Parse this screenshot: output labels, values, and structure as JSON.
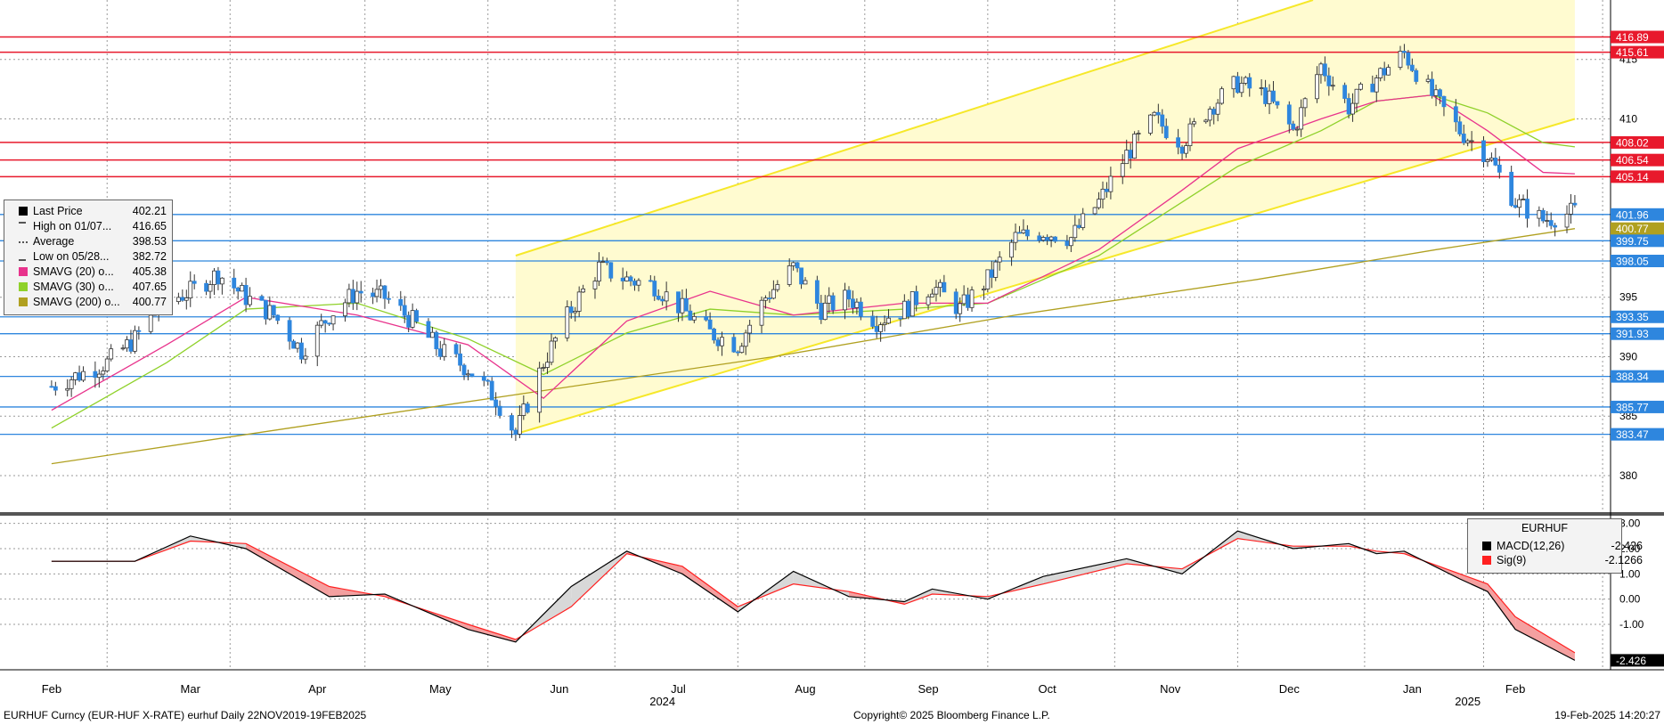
{
  "footer": {
    "left": "EURHUF Curncy (EUR-HUF X-RATE) eurhuf  Daily 22NOV2019-19FEB2025",
    "center": "Copyright© 2025 Bloomberg Finance L.P.",
    "right": "19-Feb-2025 14:20:27"
  },
  "legend": [
    {
      "name": "Last Price",
      "value": "402.21",
      "color": "#000000",
      "marker": "square"
    },
    {
      "name": "High on 01/07...",
      "value": "416.65",
      "color": "#555555",
      "marker": "T"
    },
    {
      "name": "Average",
      "value": "398.53",
      "color": "#555555",
      "marker": "dash"
    },
    {
      "name": "Low on 05/28...",
      "value": "382.72",
      "color": "#555555",
      "marker": "inv-T"
    },
    {
      "name": "SMAVG (20)  o...",
      "value": "405.38",
      "color": "#e8338c",
      "marker": "square"
    },
    {
      "name": "SMAVG (30)  o...",
      "value": "407.65",
      "color": "#8fd12a",
      "marker": "square"
    },
    {
      "name": "SMAVG (200)  o...",
      "value": "400.77",
      "color": "#b0a020",
      "marker": "square"
    }
  ],
  "macd_legend": {
    "title": "EURHUF",
    "rows": [
      {
        "name": "MACD(12,26)",
        "value": "-2.426",
        "color": "#000000"
      },
      {
        "name": "Sig(9)",
        "value": "-2.1266",
        "color": "#ff2020"
      }
    ]
  },
  "chart_data": [
    {
      "type": "candlestick",
      "ylim": [
        377,
        420
      ],
      "y_ticks": [
        "380",
        "385",
        "390",
        "395",
        "410",
        "415"
      ],
      "x_ticks": [
        "Feb",
        "Mar",
        "Apr",
        "May",
        "Jun",
        "Jul",
        "Aug",
        "Sep",
        "Oct",
        "Nov",
        "Dec",
        "Jan",
        "Feb"
      ],
      "x_years": [
        "2024",
        "2025"
      ],
      "price_points": [
        [
          "2024-02-01",
          387.5
        ],
        [
          "2024-02-08",
          388.5
        ],
        [
          "2024-02-15",
          389.5
        ],
        [
          "2024-02-22",
          391.5
        ],
        [
          "2024-02-29",
          394.5
        ],
        [
          "2024-03-07",
          395.5
        ],
        [
          "2024-03-14",
          397
        ],
        [
          "2024-03-21",
          395
        ],
        [
          "2024-03-28",
          393.5
        ],
        [
          "2024-04-04",
          390.5
        ],
        [
          "2024-04-11",
          393.5
        ],
        [
          "2024-04-18",
          395.5
        ],
        [
          "2024-04-25",
          395
        ],
        [
          "2024-05-02",
          393
        ],
        [
          "2024-05-09",
          390.5
        ],
        [
          "2024-05-16",
          389
        ],
        [
          "2024-05-23",
          386.5
        ],
        [
          "2024-05-28",
          383.5
        ],
        [
          "2024-06-04",
          389.5
        ],
        [
          "2024-06-11",
          394
        ],
        [
          "2024-06-18",
          397.5
        ],
        [
          "2024-06-25",
          396.5
        ],
        [
          "2024-07-02",
          396
        ],
        [
          "2024-07-09",
          394
        ],
        [
          "2024-07-16",
          392
        ],
        [
          "2024-07-23",
          391
        ],
        [
          "2024-07-30",
          395
        ],
        [
          "2024-08-06",
          397.5
        ],
        [
          "2024-08-13",
          394
        ],
        [
          "2024-08-20",
          395
        ],
        [
          "2024-08-27",
          393
        ],
        [
          "2024-09-03",
          394
        ],
        [
          "2024-09-10",
          396
        ],
        [
          "2024-09-17",
          394
        ],
        [
          "2024-09-24",
          396.5
        ],
        [
          "2024-10-01",
          400
        ],
        [
          "2024-10-08",
          400.5
        ],
        [
          "2024-10-15",
          400
        ],
        [
          "2024-10-22",
          403
        ],
        [
          "2024-10-29",
          407
        ],
        [
          "2024-11-05",
          410
        ],
        [
          "2024-11-12",
          408
        ],
        [
          "2024-11-19",
          411
        ],
        [
          "2024-11-26",
          413
        ],
        [
          "2024-12-03",
          412
        ],
        [
          "2024-12-10",
          409
        ],
        [
          "2024-12-17",
          414.5
        ],
        [
          "2024-12-24",
          411
        ],
        [
          "2024-12-31",
          413.5
        ],
        [
          "2025-01-07",
          415.5
        ],
        [
          "2025-01-14",
          412
        ],
        [
          "2025-01-21",
          409
        ],
        [
          "2025-01-28",
          407
        ],
        [
          "2025-02-04",
          403
        ],
        [
          "2025-02-11",
          401.5
        ],
        [
          "2025-02-19",
          402.21
        ]
      ],
      "sma20": [
        [
          "2024-02-01",
          385.5
        ],
        [
          "2024-03-01",
          391
        ],
        [
          "2024-03-21",
          395
        ],
        [
          "2024-04-18",
          393.5
        ],
        [
          "2024-05-16",
          391
        ],
        [
          "2024-06-04",
          386.5
        ],
        [
          "2024-06-25",
          393
        ],
        [
          "2024-07-16",
          395.5
        ],
        [
          "2024-08-06",
          393.5
        ],
        [
          "2024-09-03",
          394.5
        ],
        [
          "2024-09-24",
          394.5
        ],
        [
          "2024-10-22",
          399
        ],
        [
          "2024-11-12",
          404
        ],
        [
          "2024-11-26",
          407.5
        ],
        [
          "2024-12-17",
          410
        ],
        [
          "2024-12-31",
          411.5
        ],
        [
          "2025-01-14",
          412
        ],
        [
          "2025-01-28",
          409
        ],
        [
          "2025-02-11",
          405.5
        ],
        [
          "2025-02-19",
          405.38
        ]
      ],
      "sma30": [
        [
          "2024-02-01",
          384
        ],
        [
          "2024-03-01",
          389.5
        ],
        [
          "2024-03-21",
          394
        ],
        [
          "2024-04-18",
          394.5
        ],
        [
          "2024-05-16",
          391.5
        ],
        [
          "2024-06-04",
          388.5
        ],
        [
          "2024-06-25",
          392
        ],
        [
          "2024-07-16",
          394
        ],
        [
          "2024-08-06",
          393.5
        ],
        [
          "2024-09-03",
          394
        ],
        [
          "2024-09-24",
          394.5
        ],
        [
          "2024-10-22",
          398.5
        ],
        [
          "2024-11-12",
          403
        ],
        [
          "2024-11-26",
          406
        ],
        [
          "2024-12-17",
          409
        ],
        [
          "2024-12-31",
          411.5
        ],
        [
          "2025-01-14",
          412
        ],
        [
          "2025-01-28",
          410.5
        ],
        [
          "2025-02-11",
          408
        ],
        [
          "2025-02-19",
          407.65
        ]
      ],
      "sma200": [
        [
          "2024-02-01",
          381
        ],
        [
          "2024-04-01",
          384
        ],
        [
          "2024-06-01",
          387
        ],
        [
          "2024-08-01",
          390
        ],
        [
          "2024-10-01",
          393.5
        ],
        [
          "2024-12-01",
          396.5
        ],
        [
          "2025-01-15",
          399
        ],
        [
          "2025-02-19",
          400.77
        ]
      ],
      "channel": {
        "lower": [
          [
            "2024-05-28",
            383.5
          ],
          [
            "2025-02-19",
            410
          ]
        ],
        "upper": [
          [
            "2024-05-28",
            398.5
          ],
          [
            "2024-12-15",
            420
          ]
        ]
      },
      "resistance_lines": [
        416.89,
        415.61,
        408.02,
        406.54,
        405.14
      ],
      "support_lines": [
        401.96,
        399.75,
        398.05,
        393.35,
        391.93,
        388.34,
        385.77,
        383.47
      ],
      "price_tags": [
        {
          "value": 416.89,
          "label": "416.89",
          "color": "#e8192c"
        },
        {
          "value": 415.61,
          "label": "415.61",
          "color": "#e8192c"
        },
        {
          "value": 408.02,
          "label": "408.02",
          "color": "#e8192c"
        },
        {
          "value": 406.54,
          "label": "406.54",
          "color": "#e8192c"
        },
        {
          "value": 405.14,
          "label": "405.14",
          "color": "#e8192c"
        },
        {
          "value": 401.96,
          "label": "401.96",
          "color": "#2e86de"
        },
        {
          "value": 400.77,
          "label": "400.77",
          "color": "#b0a020"
        },
        {
          "value": 399.75,
          "label": "399.75",
          "color": "#2e86de"
        },
        {
          "value": 398.05,
          "label": "398.05",
          "color": "#2e86de"
        },
        {
          "value": 393.35,
          "label": "393.35",
          "color": "#2e86de"
        },
        {
          "value": 391.93,
          "label": "391.93",
          "color": "#2e86de"
        },
        {
          "value": 388.34,
          "label": "388.34",
          "color": "#2e86de"
        },
        {
          "value": 385.77,
          "label": "385.77",
          "color": "#2e86de"
        },
        {
          "value": 383.47,
          "label": "383.47",
          "color": "#2e86de"
        }
      ]
    },
    {
      "type": "line",
      "name": "MACD",
      "ylim": [
        -2.8,
        3.2
      ],
      "y_ticks": [
        "3.00",
        "2.00",
        "1.00",
        "0.00",
        "-1.00"
      ],
      "last_tag": "-2.426",
      "macd": [
        [
          "2024-02-01",
          1.5
        ],
        [
          "2024-02-22",
          1.5
        ],
        [
          "2024-03-07",
          2.5
        ],
        [
          "2024-03-21",
          2.0
        ],
        [
          "2024-04-11",
          0.1
        ],
        [
          "2024-04-25",
          0.2
        ],
        [
          "2024-05-16",
          -1.2
        ],
        [
          "2024-05-28",
          -1.7
        ],
        [
          "2024-06-11",
          0.5
        ],
        [
          "2024-06-25",
          1.9
        ],
        [
          "2024-07-09",
          1.0
        ],
        [
          "2024-07-23",
          -0.5
        ],
        [
          "2024-08-06",
          1.1
        ],
        [
          "2024-08-20",
          0.1
        ],
        [
          "2024-09-03",
          -0.1
        ],
        [
          "2024-09-10",
          0.4
        ],
        [
          "2024-09-24",
          0.0
        ],
        [
          "2024-10-08",
          0.9
        ],
        [
          "2024-10-29",
          1.6
        ],
        [
          "2024-11-12",
          1.0
        ],
        [
          "2024-11-26",
          2.7
        ],
        [
          "2024-12-10",
          2.0
        ],
        [
          "2024-12-24",
          2.2
        ],
        [
          "2024-12-31",
          1.8
        ],
        [
          "2025-01-07",
          1.9
        ],
        [
          "2025-01-21",
          0.8
        ],
        [
          "2025-01-28",
          0.3
        ],
        [
          "2025-02-04",
          -1.2
        ],
        [
          "2025-02-19",
          -2.426
        ]
      ],
      "signal": [
        [
          "2024-02-01",
          1.5
        ],
        [
          "2024-02-22",
          1.5
        ],
        [
          "2024-03-07",
          2.3
        ],
        [
          "2024-03-21",
          2.2
        ],
        [
          "2024-04-11",
          0.5
        ],
        [
          "2024-04-25",
          0.1
        ],
        [
          "2024-05-16",
          -1.0
        ],
        [
          "2024-05-28",
          -1.6
        ],
        [
          "2024-06-11",
          -0.3
        ],
        [
          "2024-06-25",
          1.8
        ],
        [
          "2024-07-09",
          1.3
        ],
        [
          "2024-07-23",
          -0.3
        ],
        [
          "2024-08-06",
          0.6
        ],
        [
          "2024-08-20",
          0.3
        ],
        [
          "2024-09-03",
          -0.2
        ],
        [
          "2024-09-10",
          0.2
        ],
        [
          "2024-09-24",
          0.1
        ],
        [
          "2024-10-08",
          0.6
        ],
        [
          "2024-10-29",
          1.4
        ],
        [
          "2024-11-12",
          1.2
        ],
        [
          "2024-11-26",
          2.4
        ],
        [
          "2024-12-10",
          2.1
        ],
        [
          "2024-12-24",
          2.1
        ],
        [
          "2024-12-31",
          1.9
        ],
        [
          "2025-01-07",
          1.8
        ],
        [
          "2025-01-21",
          1.0
        ],
        [
          "2025-01-28",
          0.6
        ],
        [
          "2025-02-04",
          -0.7
        ],
        [
          "2025-02-19",
          -2.1266
        ]
      ]
    }
  ]
}
